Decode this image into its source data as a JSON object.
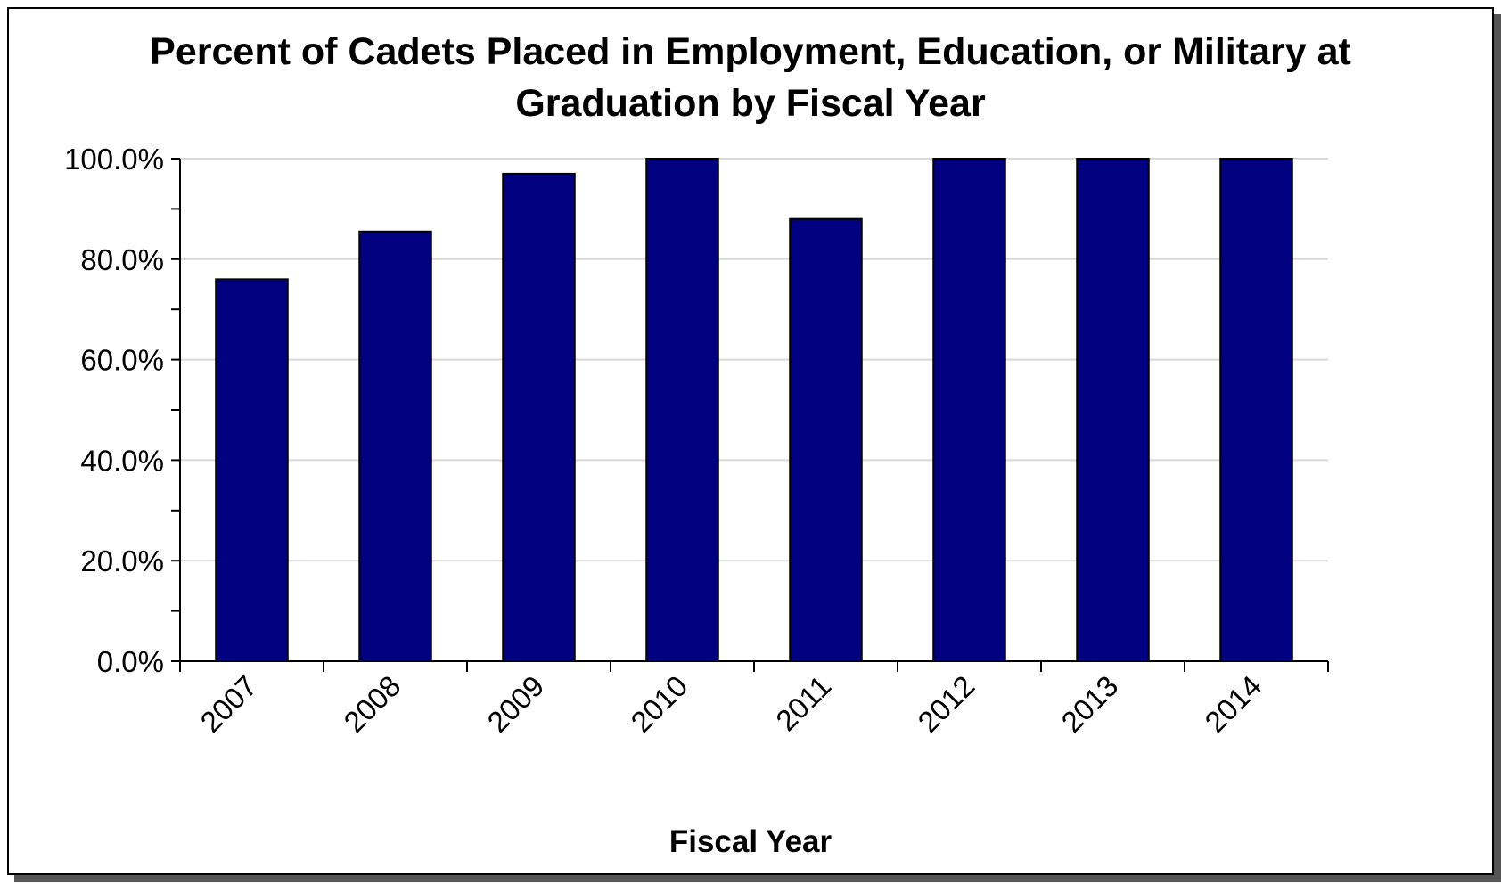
{
  "chart_data": {
    "type": "bar",
    "title": "Percent of Cadets Placed in Employment, Education, or Military at Graduation by Fiscal Year",
    "title_lines": [
      "Percent of Cadets Placed in Employment, Education, or Military at",
      "Graduation by Fiscal Year"
    ],
    "xlabel": "Fiscal Year",
    "ylabel": "",
    "categories": [
      "2007",
      "2008",
      "2009",
      "2010",
      "2011",
      "2012",
      "2013",
      "2014"
    ],
    "values": [
      76.0,
      85.5,
      97.0,
      100.0,
      88.0,
      100.0,
      100.0,
      100.0
    ],
    "ylim": [
      0,
      100
    ],
    "yticks": [
      0,
      20,
      40,
      60,
      80,
      100
    ],
    "ytick_labels": [
      "0.0%",
      "20.0%",
      "40.0%",
      "60.0%",
      "80.0%",
      "100.0%"
    ],
    "grid": true,
    "legend": "none",
    "bar_color": "#000080",
    "grid_color": "#d9d9d9"
  }
}
